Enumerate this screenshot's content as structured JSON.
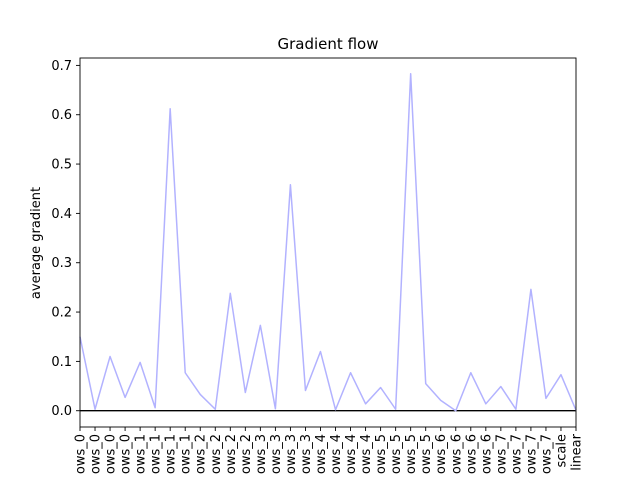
{
  "chart_data": {
    "type": "line",
    "title": "Gradient flow",
    "xlabel": "",
    "ylabel": "average gradient",
    "ylim": [
      -0.033,
      0.715
    ],
    "yticks": [
      "0.0",
      "0.1",
      "0.2",
      "0.3",
      "0.4",
      "0.5",
      "0.6",
      "0.7"
    ],
    "zero_line": true,
    "grid": false,
    "line_color": "#b2b2ff",
    "categories": [
      "ows_0",
      "ows_0",
      "ows_0",
      "ows_0",
      "ows_1",
      "ows_1",
      "ows_1",
      "ows_1",
      "ows_2",
      "ows_2",
      "ows_2",
      "ows_2",
      "ows_3",
      "ows_3",
      "ows_3",
      "ows_3",
      "ows_4",
      "ows_4",
      "ows_4",
      "ows_4",
      "ows_5",
      "ows_5",
      "ows_5",
      "ows_5",
      "ows_6",
      "ows_6",
      "ows_6",
      "ows_6",
      "ows_7",
      "ows_7",
      "ows_7",
      "ows_7",
      "scale",
      "linear"
    ],
    "values": [
      0.15,
      0.003,
      0.11,
      0.027,
      0.098,
      0.006,
      0.612,
      0.077,
      0.033,
      0.003,
      0.238,
      0.037,
      0.173,
      0.004,
      0.458,
      0.041,
      0.12,
      0.002,
      0.077,
      0.014,
      0.047,
      0.003,
      0.683,
      0.055,
      0.021,
      0.0,
      0.077,
      0.014,
      0.049,
      0.003,
      0.246,
      0.025,
      0.073,
      0.001
    ]
  }
}
